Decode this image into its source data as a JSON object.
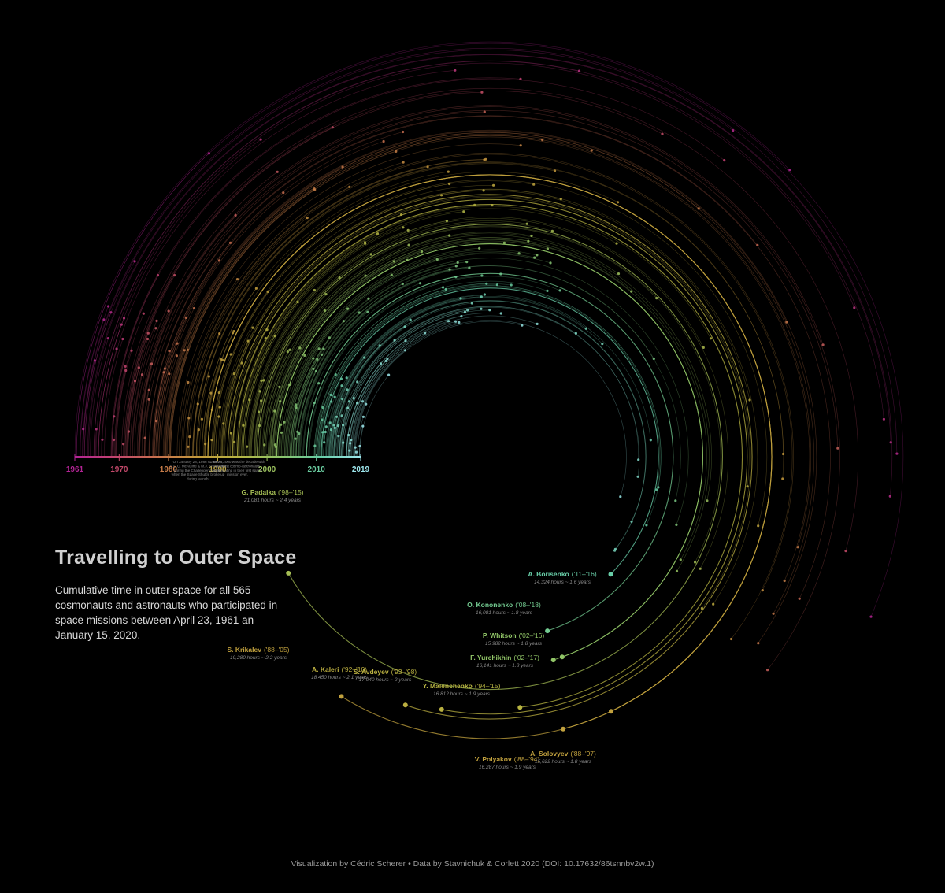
{
  "header": {
    "title": "Travelling to Outer Space",
    "subtitle": "Cumulative time in outer space for all 565 cosmonauts and astronauts who participated in space missions between April 23, 1961 an January 15, 2020."
  },
  "caption": "Visualization by Cédric Scherer  •  Data by Stavnichuk & Corlett 2020 (DOI: 10.17632/86tsnnbv2w.1)",
  "colors": {
    "background": "#000000",
    "timeline_stops": [
      "#b42496",
      "#c4456e",
      "#c9714e",
      "#c49a3c",
      "#b8b542",
      "#8fc669",
      "#66cda5",
      "#9ee8ee"
    ]
  },
  "chart_data": {
    "type": "radial-arc",
    "timeline": {
      "ticks": [
        "1961",
        "1970",
        "1980",
        "1990",
        "2000",
        "2010",
        "2019"
      ],
      "tick_years": [
        1961,
        1970,
        1980,
        1990,
        2000,
        2010,
        2019
      ],
      "annotations": [
        {
          "year": 1986,
          "text": "On January 28, 1986 G. Jarvis, S.C.C. McAuliffe & M.J. Smith died during the Challenger disaster when the Space Shuttle broke up during launch."
        },
        {
          "year": 1994,
          "text": "1990 to 2000 was the decade with the most cosmo-/astronauts participating in their first space mission ever."
        }
      ]
    },
    "highlighted": [
      {
        "name": "G. Padalka",
        "years": "('98–'15)",
        "detail": "21,081 hours ~ 2.4 years",
        "debut": 1998,
        "hours": 21081
      },
      {
        "name": "S. Krikalev",
        "years": "('88–'05)",
        "detail": "19,280 hours ~ 2.2 years",
        "debut": 1988,
        "hours": 19280
      },
      {
        "name": "A. Kaleri",
        "years": "('92–'10)",
        "detail": "18,450 hours ~ 2.1 years",
        "debut": 1992,
        "hours": 18450
      },
      {
        "name": "S. Avdeyev",
        "years": "('93–'98)",
        "detail": "17,940 hours ~ 2 years",
        "debut": 1993,
        "hours": 17940
      },
      {
        "name": "Y. Malenchenko",
        "years": "('94–'15)",
        "detail": "16,812 hours ~ 1.9 years",
        "debut": 1994,
        "hours": 16812
      },
      {
        "name": "V. Polyakov",
        "years": "('88–'94)",
        "detail": "16,287 hours ~ 1.9 years",
        "debut": 1988,
        "hours": 16287
      },
      {
        "name": "A. Solovyev",
        "years": "('88–'97)",
        "detail": "15,622 hours ~ 1.8 years",
        "debut": 1988,
        "hours": 15622
      },
      {
        "name": "F. Yurchikhin",
        "years": "('02–'17)",
        "detail": "16,141 hours ~ 1.8 years",
        "debut": 2002,
        "hours": 16141
      },
      {
        "name": "P. Whitson",
        "years": "('02–'16)",
        "detail": "15,982 hours ~ 1.8 years",
        "debut": 2002,
        "hours": 15982
      },
      {
        "name": "O. Kononenko",
        "years": "('08–'18)",
        "detail": "16,081 hours ~ 1.8 years",
        "debut": 2008,
        "hours": 16081
      },
      {
        "name": "A. Borisenko",
        "years": "('11–'16)",
        "detail": "14,324 hours ~ 1.6 years",
        "debut": 2011,
        "hours": 14324
      }
    ]
  }
}
